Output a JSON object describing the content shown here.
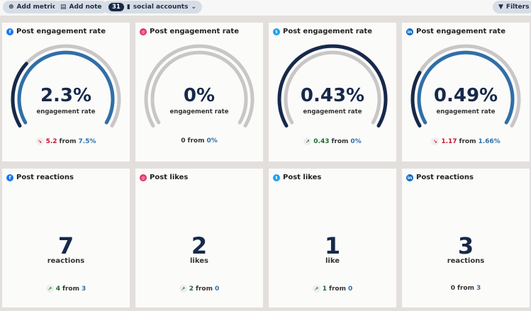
{
  "toolbar": {
    "add_metric": "Add metric",
    "add_note": "Add note",
    "accounts_count": "31",
    "accounts_label": "social accounts",
    "filters": "Filters"
  },
  "colors": {
    "navy": "#17294a",
    "blue": "#2f6fa8",
    "track": "#c8c6c6",
    "up": "#1c6b2a",
    "down": "#c4122f",
    "facebook": "#1877f2",
    "instagram": "#e1306c",
    "twitter": "#1da1f2",
    "linkedin": "#0a66c2"
  },
  "cards": [
    {
      "network": "facebook",
      "title": "Post engagement rate",
      "value": "2.3%",
      "unit": "engagement rate",
      "direction": "down",
      "delta": "5.2",
      "from_label": "from",
      "previous": "7.5%",
      "gauge_previous": 0.3,
      "gauge_current": 1.0
    },
    {
      "network": "instagram",
      "title": "Post engagement rate",
      "value": "0%",
      "unit": "engagement rate",
      "direction": "none",
      "delta": "0",
      "from_label": "from",
      "previous": "0%",
      "gauge_previous": 0,
      "gauge_current": 0
    },
    {
      "network": "twitter",
      "title": "Post engagement rate",
      "value": "0.43%",
      "unit": "engagement rate",
      "direction": "up",
      "delta": "0.43",
      "from_label": "from",
      "previous": "0%",
      "gauge_previous": 1.0,
      "gauge_current": 0
    },
    {
      "network": "linkedin",
      "title": "Post engagement rate",
      "value": "0.49%",
      "unit": "engagement rate",
      "direction": "down",
      "delta": "1.17",
      "from_label": "from",
      "previous": "1.66%",
      "gauge_previous": 0.25,
      "gauge_current": 1.0
    },
    {
      "network": "facebook",
      "title": "Post reactions",
      "value": "7",
      "unit": "reactions",
      "direction": "up",
      "delta": "4",
      "from_label": "from",
      "previous": "3"
    },
    {
      "network": "instagram",
      "title": "Post likes",
      "value": "2",
      "unit": "likes",
      "direction": "up",
      "delta": "2",
      "from_label": "from",
      "previous": "0"
    },
    {
      "network": "twitter",
      "title": "Post likes",
      "value": "1",
      "unit": "like",
      "direction": "up",
      "delta": "1",
      "from_label": "from",
      "previous": "0"
    },
    {
      "network": "linkedin",
      "title": "Post reactions",
      "value": "3",
      "unit": "reactions",
      "direction": "none",
      "delta": "0",
      "from_label": "from",
      "previous": "3"
    }
  ]
}
